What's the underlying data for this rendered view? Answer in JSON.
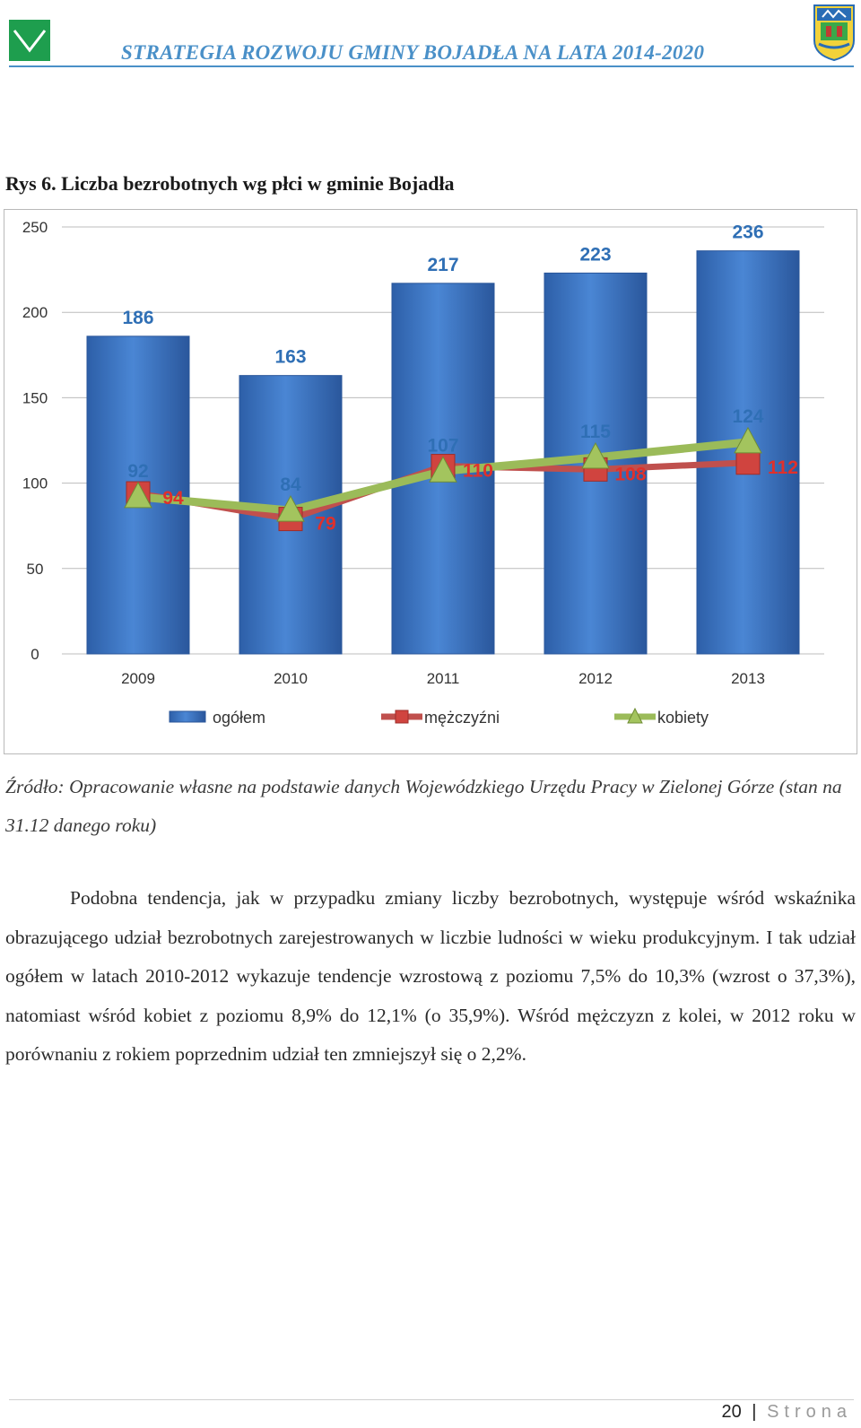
{
  "header": {
    "title": "STRATEGIA ROZWOJU GMINY BOJADŁA NA LATA 2014-2020",
    "logo_icon": "check-logo-icon",
    "crest_icon": "coat-of-arms-icon"
  },
  "figure": {
    "caption": "Rys 6. Liczba bezrobotnych wg płci w gminie Bojadła"
  },
  "chart_data": {
    "type": "bar",
    "categories": [
      "2009",
      "2010",
      "2011",
      "2012",
      "2013"
    ],
    "ylim": [
      0,
      250
    ],
    "yticks": [
      "0",
      "50",
      "100",
      "150",
      "200",
      "250"
    ],
    "grid": true,
    "legend_placement": "bottom",
    "series": [
      {
        "name": "ogółem",
        "type": "bar",
        "color": "#3a75c4",
        "values": [
          186,
          163,
          217,
          223,
          236
        ]
      },
      {
        "name": "mężczyźni",
        "type": "line",
        "color": "#c0504d",
        "values": [
          94,
          79,
          110,
          108,
          112
        ]
      },
      {
        "name": "kobiety",
        "type": "line",
        "color": "#9bbb59",
        "values": [
          92,
          84,
          107,
          115,
          124
        ]
      }
    ]
  },
  "source": "Źródło: Opracowanie własne na podstawie danych Wojewódzkiego Urzędu Pracy w Zielonej Górze (stan na 31.12 danego roku)",
  "paragraph": "Podobna tendencja, jak w przypadku zmiany liczby bezrobotnych, występuje wśród wskaźnika obrazującego udział bezrobotnych zarejestrowanych w liczbie ludności w wieku produkcyjnym. I tak udział ogółem w latach 2010-2012 wykazuje tendencje wzrostową z poziomu 7,5% do 10,3% (wzrost o 37,3%), natomiast wśród kobiet z poziomu 8,9% do 12,1% (o 35,9%). Wśród mężczyzn z kolei, w 2012 roku w porównaniu z rokiem poprzednim udział ten zmniejszył się o 2,2%.",
  "footer": {
    "page_number": "20",
    "separator": "|",
    "label": "Strona"
  }
}
